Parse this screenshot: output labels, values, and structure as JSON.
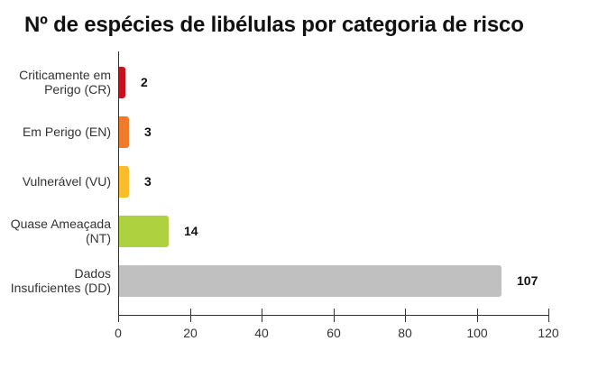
{
  "title": "Nº de espécies de libélulas por categoria de risco",
  "chart_data": {
    "type": "bar",
    "orientation": "horizontal",
    "title": "Nº de espécies de libélulas por categoria de risco",
    "xlabel": "",
    "ylabel": "",
    "xlim": [
      0,
      120
    ],
    "x_ticks": [
      "0",
      "20",
      "40",
      "60",
      "80",
      "100",
      "120"
    ],
    "categories": [
      {
        "line1": "Criticamente em",
        "line2": "Perigo (CR)"
      },
      {
        "line1": "Em Perigo (EN)",
        "line2": ""
      },
      {
        "line1": "Vulnerável (VU)",
        "line2": ""
      },
      {
        "line1": "Quase Ameaçada",
        "line2": "(NT)"
      },
      {
        "line1": "Dados",
        "line2": "Insuficientes (DD)"
      }
    ],
    "values": [
      2,
      3,
      3,
      14,
      107
    ],
    "value_labels": [
      "2",
      "3",
      "3",
      "14",
      "107"
    ],
    "colors": [
      "#c8101c",
      "#f07c2b",
      "#fbbc2d",
      "#aed23f",
      "#c0c0c0"
    ],
    "grid": false,
    "legend": "none"
  }
}
